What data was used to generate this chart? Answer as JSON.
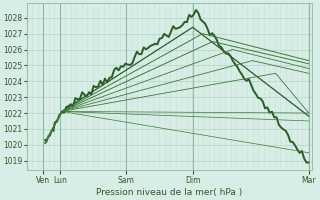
{
  "xlabel": "Pression niveau de la mer( hPa )",
  "background_color": "#d8ede5",
  "grid_color_h": "#b0d4c4",
  "grid_color_v": "#c8ddd6",
  "line_color_dark": "#2a5c28",
  "line_color_mid": "#3d7a36",
  "line_color_light": "#5a9a50",
  "yticks": [
    1019,
    1020,
    1021,
    1022,
    1023,
    1024,
    1025,
    1026,
    1027,
    1028
  ],
  "ylim": [
    1018.4,
    1028.9
  ],
  "xlim": [
    0.0,
    8.6
  ],
  "day_positions": [
    0.5,
    1.0,
    3.0,
    5.0,
    8.5
  ],
  "day_labels": [
    "Ven",
    "Lun",
    "Sam",
    "Dim",
    "Mar"
  ],
  "fan_lines": [
    {
      "xpeak": 5.1,
      "ypeak": 1028.3,
      "xend": 8.5,
      "yend": 1018.8,
      "lw": 1.4,
      "noisy": true,
      "dark": true
    },
    {
      "xpeak": 5.0,
      "ypeak": 1027.4,
      "xend": 8.5,
      "yend": 1021.8,
      "lw": 0.9,
      "noisy": false,
      "dark": true
    },
    {
      "xpeak": 5.3,
      "ypeak": 1027.0,
      "xend": 8.5,
      "yend": 1025.3,
      "lw": 0.7,
      "noisy": false,
      "dark": false
    },
    {
      "xpeak": 5.6,
      "ypeak": 1026.5,
      "xend": 8.5,
      "yend": 1025.1,
      "lw": 0.7,
      "noisy": false,
      "dark": false
    },
    {
      "xpeak": 6.2,
      "ypeak": 1026.0,
      "xend": 8.5,
      "yend": 1024.8,
      "lw": 0.6,
      "noisy": false,
      "dark": false
    },
    {
      "xpeak": 6.8,
      "ypeak": 1025.3,
      "xend": 8.5,
      "yend": 1024.5,
      "lw": 0.6,
      "noisy": false,
      "dark": false
    },
    {
      "xpeak": 7.5,
      "ypeak": 1024.5,
      "xend": 8.5,
      "yend": 1022.0,
      "lw": 0.6,
      "noisy": false,
      "dark": false
    },
    {
      "xpeak": 8.5,
      "ypeak": 1022.0,
      "xend": 8.5,
      "yend": 1022.0,
      "lw": 0.5,
      "noisy": false,
      "dark": false
    },
    {
      "xpeak": 8.5,
      "ypeak": 1021.5,
      "xend": 8.5,
      "yend": 1021.5,
      "lw": 0.5,
      "noisy": false,
      "dark": false
    },
    {
      "xpeak": 8.5,
      "ypeak": 1019.5,
      "xend": 8.5,
      "yend": 1019.5,
      "lw": 0.5,
      "noisy": false,
      "dark": false
    }
  ],
  "x_origin": 0.55,
  "y_origin": 1020.1,
  "x_conv": 1.05,
  "y_conv": 1022.1
}
